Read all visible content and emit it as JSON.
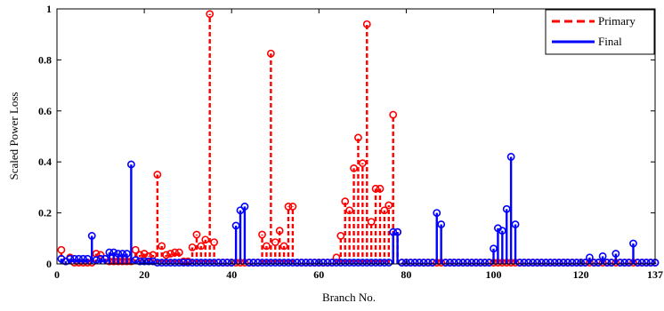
{
  "chart_data": {
    "type": "stem",
    "xlabel": "Branch No.",
    "ylabel": "Scaled Power Loss",
    "xlim": [
      0,
      137
    ],
    "ylim": [
      0,
      1
    ],
    "xticks": [
      0,
      20,
      40,
      60,
      80,
      100,
      120,
      137
    ],
    "yticks": [
      0,
      0.2,
      0.4,
      0.6,
      0.8,
      1
    ],
    "ytick_labels": [
      "0",
      "0.2",
      "0.4",
      "0.6",
      "0.8",
      "1"
    ],
    "legend_position": "top-right",
    "series": [
      {
        "name": "Primary",
        "color": "#ff0000",
        "line_style": "dashed",
        "points": [
          [
            1,
            0.055
          ],
          [
            2,
            0.01
          ],
          [
            3,
            0.025
          ],
          [
            4,
            0.005
          ],
          [
            5,
            0.005
          ],
          [
            6,
            0.005
          ],
          [
            7,
            0.005
          ],
          [
            8,
            0.005
          ],
          [
            9,
            0.04
          ],
          [
            10,
            0.035
          ],
          [
            11,
            0.02
          ],
          [
            12,
            0.01
          ],
          [
            13,
            0.01
          ],
          [
            14,
            0.01
          ],
          [
            15,
            0.01
          ],
          [
            16,
            0.01
          ],
          [
            17,
            0.01
          ],
          [
            18,
            0.055
          ],
          [
            19,
            0.035
          ],
          [
            20,
            0.04
          ],
          [
            21,
            0.03
          ],
          [
            22,
            0.035
          ],
          [
            23,
            0.35
          ],
          [
            24,
            0.07
          ],
          [
            25,
            0.035
          ],
          [
            26,
            0.04
          ],
          [
            27,
            0.045
          ],
          [
            28,
            0.045
          ],
          [
            29,
            0.01
          ],
          [
            30,
            0.01
          ],
          [
            31,
            0.065
          ],
          [
            32,
            0.115
          ],
          [
            33,
            0.07
          ],
          [
            34,
            0.095
          ],
          [
            35,
            0.98
          ],
          [
            36,
            0.085
          ],
          [
            37,
            0.005
          ],
          [
            38,
            0.005
          ],
          [
            39,
            0.005
          ],
          [
            40,
            0.005
          ],
          [
            41,
            0.005
          ],
          [
            42,
            0.005
          ],
          [
            43,
            0.005
          ],
          [
            44,
            0.005
          ],
          [
            45,
            0.005
          ],
          [
            46,
            0.005
          ],
          [
            47,
            0.115
          ],
          [
            48,
            0.07
          ],
          [
            49,
            0.825
          ],
          [
            50,
            0.085
          ],
          [
            51,
            0.13
          ],
          [
            52,
            0.07
          ],
          [
            53,
            0.225
          ],
          [
            54,
            0.225
          ],
          [
            55,
            0.005
          ],
          [
            56,
            0.005
          ],
          [
            57,
            0.005
          ],
          [
            58,
            0.005
          ],
          [
            59,
            0.005
          ],
          [
            60,
            0.005
          ],
          [
            61,
            0.005
          ],
          [
            62,
            0.005
          ],
          [
            63,
            0.005
          ],
          [
            64,
            0.025
          ],
          [
            65,
            0.11
          ],
          [
            66,
            0.245
          ],
          [
            67,
            0.21
          ],
          [
            68,
            0.375
          ],
          [
            69,
            0.495
          ],
          [
            70,
            0.395
          ],
          [
            71,
            0.94
          ],
          [
            72,
            0.165
          ],
          [
            73,
            0.295
          ],
          [
            74,
            0.295
          ],
          [
            75,
            0.21
          ],
          [
            76,
            0.23
          ],
          [
            77,
            0.585
          ],
          [
            78,
            0.125
          ],
          [
            79,
            0.005
          ],
          [
            80,
            0.005
          ],
          [
            81,
            0.005
          ],
          [
            82,
            0.005
          ],
          [
            83,
            0.005
          ],
          [
            84,
            0.005
          ],
          [
            85,
            0.005
          ],
          [
            86,
            0.005
          ],
          [
            87,
            0.005
          ],
          [
            88,
            0.005
          ],
          [
            89,
            0.005
          ],
          [
            90,
            0.005
          ],
          [
            91,
            0.005
          ],
          [
            92,
            0.005
          ],
          [
            93,
            0.005
          ],
          [
            94,
            0.005
          ],
          [
            95,
            0.005
          ],
          [
            96,
            0.005
          ],
          [
            97,
            0.005
          ],
          [
            98,
            0.005
          ],
          [
            99,
            0.005
          ],
          [
            100,
            0.005
          ],
          [
            101,
            0.005
          ],
          [
            102,
            0.005
          ],
          [
            103,
            0.005
          ],
          [
            104,
            0.005
          ],
          [
            105,
            0.005
          ],
          [
            106,
            0.005
          ],
          [
            107,
            0.005
          ],
          [
            108,
            0.005
          ],
          [
            109,
            0.005
          ],
          [
            110,
            0.005
          ],
          [
            111,
            0.005
          ],
          [
            112,
            0.005
          ],
          [
            113,
            0.005
          ],
          [
            114,
            0.005
          ],
          [
            115,
            0.005
          ],
          [
            116,
            0.005
          ],
          [
            117,
            0.005
          ],
          [
            118,
            0.005
          ],
          [
            119,
            0.005
          ],
          [
            120,
            0.005
          ],
          [
            121,
            0.005
          ],
          [
            122,
            0.005
          ],
          [
            123,
            0.005
          ],
          [
            124,
            0.005
          ],
          [
            125,
            0.005
          ],
          [
            126,
            0.005
          ],
          [
            127,
            0.005
          ],
          [
            128,
            0.005
          ],
          [
            129,
            0.005
          ],
          [
            130,
            0.005
          ],
          [
            131,
            0.005
          ],
          [
            132,
            0.005
          ],
          [
            133,
            0.005
          ],
          [
            134,
            0.005
          ],
          [
            135,
            0.005
          ],
          [
            136,
            0.005
          ],
          [
            137,
            0.005
          ]
        ]
      },
      {
        "name": "Final",
        "color": "#0000ff",
        "line_style": "solid",
        "points": [
          [
            1,
            0.02
          ],
          [
            2,
            0.01
          ],
          [
            3,
            0.02
          ],
          [
            4,
            0.02
          ],
          [
            5,
            0.02
          ],
          [
            6,
            0.02
          ],
          [
            7,
            0.02
          ],
          [
            8,
            0.11
          ],
          [
            9,
            0.015
          ],
          [
            10,
            0.02
          ],
          [
            11,
            0.02
          ],
          [
            12,
            0.045
          ],
          [
            13,
            0.045
          ],
          [
            14,
            0.04
          ],
          [
            15,
            0.04
          ],
          [
            16,
            0.04
          ],
          [
            17,
            0.39
          ],
          [
            18,
            0.015
          ],
          [
            19,
            0.01
          ],
          [
            20,
            0.01
          ],
          [
            21,
            0.01
          ],
          [
            22,
            0.01
          ],
          [
            23,
            0.005
          ],
          [
            24,
            0.005
          ],
          [
            25,
            0.005
          ],
          [
            26,
            0.005
          ],
          [
            27,
            0.005
          ],
          [
            28,
            0.005
          ],
          [
            29,
            0.005
          ],
          [
            30,
            0.005
          ],
          [
            31,
            0.005
          ],
          [
            32,
            0.005
          ],
          [
            33,
            0.005
          ],
          [
            34,
            0.005
          ],
          [
            35,
            0.005
          ],
          [
            36,
            0.005
          ],
          [
            37,
            0.005
          ],
          [
            38,
            0.005
          ],
          [
            39,
            0.005
          ],
          [
            40,
            0.005
          ],
          [
            41,
            0.15
          ],
          [
            42,
            0.21
          ],
          [
            43,
            0.225
          ],
          [
            44,
            0.005
          ],
          [
            45,
            0.005
          ],
          [
            46,
            0.005
          ],
          [
            47,
            0.005
          ],
          [
            48,
            0.005
          ],
          [
            49,
            0.005
          ],
          [
            50,
            0.005
          ],
          [
            51,
            0.005
          ],
          [
            52,
            0.005
          ],
          [
            53,
            0.005
          ],
          [
            54,
            0.005
          ],
          [
            55,
            0.005
          ],
          [
            56,
            0.005
          ],
          [
            57,
            0.005
          ],
          [
            58,
            0.005
          ],
          [
            59,
            0.005
          ],
          [
            60,
            0.005
          ],
          [
            61,
            0.005
          ],
          [
            62,
            0.005
          ],
          [
            63,
            0.005
          ],
          [
            64,
            0.005
          ],
          [
            65,
            0.005
          ],
          [
            66,
            0.005
          ],
          [
            67,
            0.005
          ],
          [
            68,
            0.005
          ],
          [
            69,
            0.005
          ],
          [
            70,
            0.005
          ],
          [
            71,
            0.005
          ],
          [
            72,
            0.005
          ],
          [
            73,
            0.005
          ],
          [
            74,
            0.005
          ],
          [
            75,
            0.005
          ],
          [
            76,
            0.005
          ],
          [
            77,
            0.125
          ],
          [
            78,
            0.125
          ],
          [
            79,
            0.005
          ],
          [
            80,
            0.005
          ],
          [
            81,
            0.005
          ],
          [
            82,
            0.005
          ],
          [
            83,
            0.005
          ],
          [
            84,
            0.005
          ],
          [
            85,
            0.005
          ],
          [
            86,
            0.005
          ],
          [
            87,
            0.2
          ],
          [
            88,
            0.155
          ],
          [
            89,
            0.005
          ],
          [
            90,
            0.005
          ],
          [
            91,
            0.005
          ],
          [
            92,
            0.005
          ],
          [
            93,
            0.005
          ],
          [
            94,
            0.005
          ],
          [
            95,
            0.005
          ],
          [
            96,
            0.005
          ],
          [
            97,
            0.005
          ],
          [
            98,
            0.005
          ],
          [
            99,
            0.005
          ],
          [
            100,
            0.06
          ],
          [
            101,
            0.14
          ],
          [
            102,
            0.13
          ],
          [
            103,
            0.215
          ],
          [
            104,
            0.42
          ],
          [
            105,
            0.155
          ],
          [
            106,
            0.005
          ],
          [
            107,
            0.005
          ],
          [
            108,
            0.005
          ],
          [
            109,
            0.005
          ],
          [
            110,
            0.005
          ],
          [
            111,
            0.005
          ],
          [
            112,
            0.005
          ],
          [
            113,
            0.005
          ],
          [
            114,
            0.005
          ],
          [
            115,
            0.005
          ],
          [
            116,
            0.005
          ],
          [
            117,
            0.005
          ],
          [
            118,
            0.005
          ],
          [
            119,
            0.005
          ],
          [
            120,
            0.005
          ],
          [
            121,
            0.005
          ],
          [
            122,
            0.025
          ],
          [
            123,
            0.005
          ],
          [
            124,
            0.005
          ],
          [
            125,
            0.03
          ],
          [
            126,
            0.005
          ],
          [
            127,
            0.005
          ],
          [
            128,
            0.04
          ],
          [
            129,
            0.005
          ],
          [
            130,
            0.005
          ],
          [
            131,
            0.005
          ],
          [
            132,
            0.08
          ],
          [
            133,
            0.005
          ],
          [
            134,
            0.005
          ],
          [
            135,
            0.005
          ],
          [
            136,
            0.005
          ],
          [
            137,
            0.005
          ]
        ]
      }
    ]
  }
}
